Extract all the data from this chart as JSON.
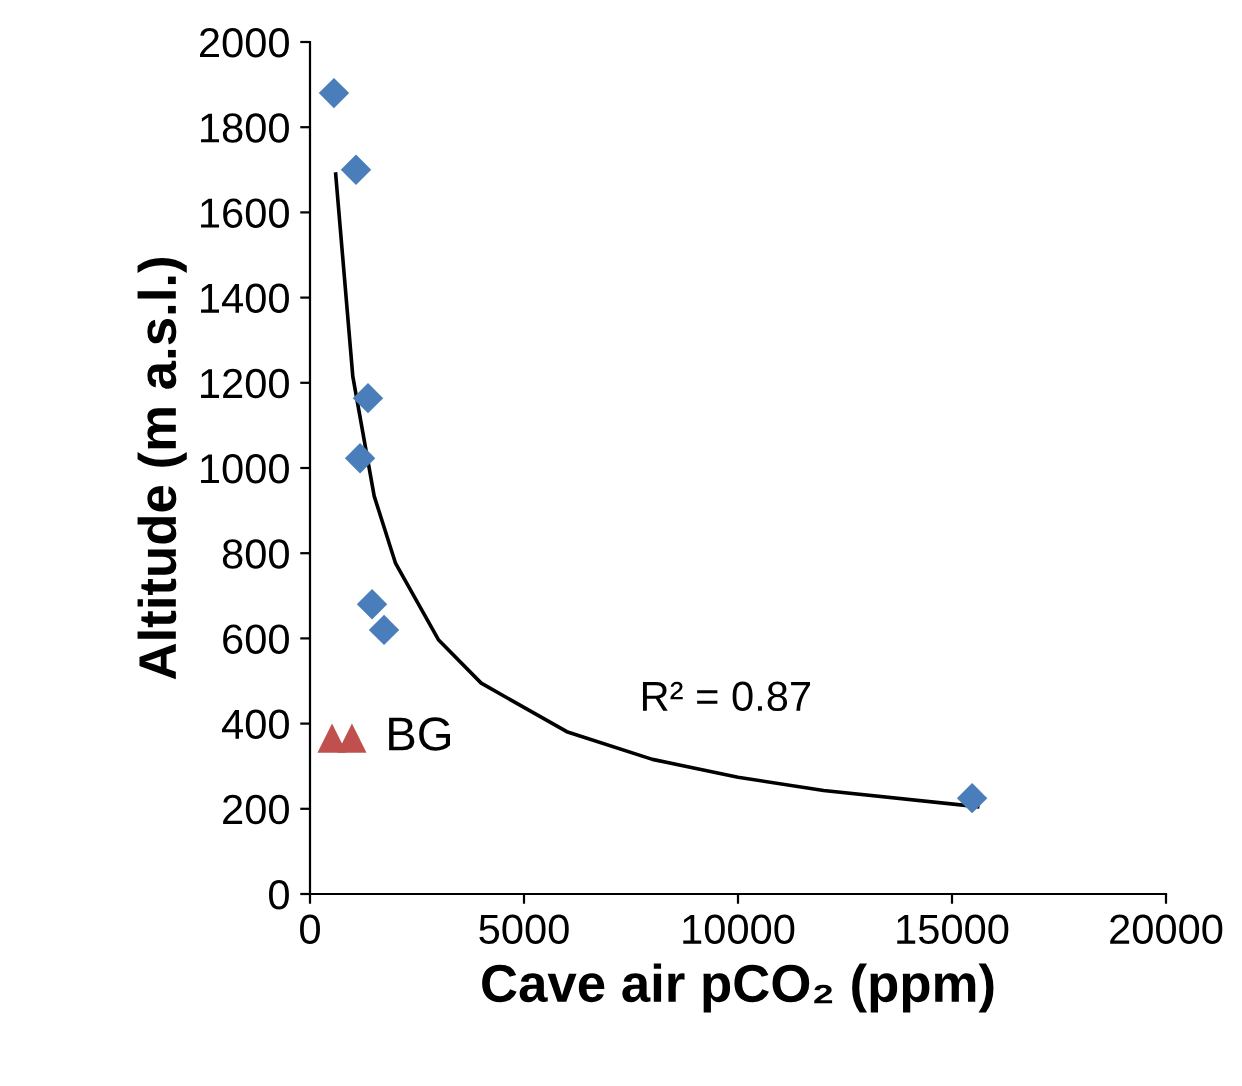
{
  "chart_data": {
    "type": "scatter",
    "xlabel": "Cave air pCO₂ (ppm)",
    "ylabel": "Altitude (m a.s.l.)",
    "xlim": [
      0,
      20000
    ],
    "xticks": [
      0,
      5000,
      10000,
      15000,
      20000
    ],
    "ylim": [
      0,
      2000
    ],
    "yticks": [
      0,
      200,
      400,
      600,
      800,
      1000,
      1200,
      1400,
      1600,
      1800,
      2000
    ],
    "grid": false,
    "legend": false,
    "series": [
      {
        "marker": "diamond",
        "color": "#4a7ebb",
        "x": [
          560,
          1075,
          1355,
          1170,
          1450,
          1730,
          15470
        ],
        "values": [
          1880,
          1700,
          1164,
          1023,
          680,
          620,
          225
        ]
      },
      {
        "marker": "triangle",
        "name": "BG",
        "color": "#c0504d",
        "x": [
          515,
          980
        ],
        "values": [
          366,
          366
        ]
      },
      {
        "type": "line",
        "color": "#000000",
        "x": [
          600,
          1000,
          1500,
          2000,
          3000,
          4000,
          6000,
          8000,
          10000,
          12000,
          15600
        ],
        "values": [
          1690,
          1215,
          934,
          776,
          597,
          495,
          381,
          316,
          274,
          243,
          205
        ]
      }
    ],
    "annotations": [
      "R² = 0.87"
    ]
  }
}
